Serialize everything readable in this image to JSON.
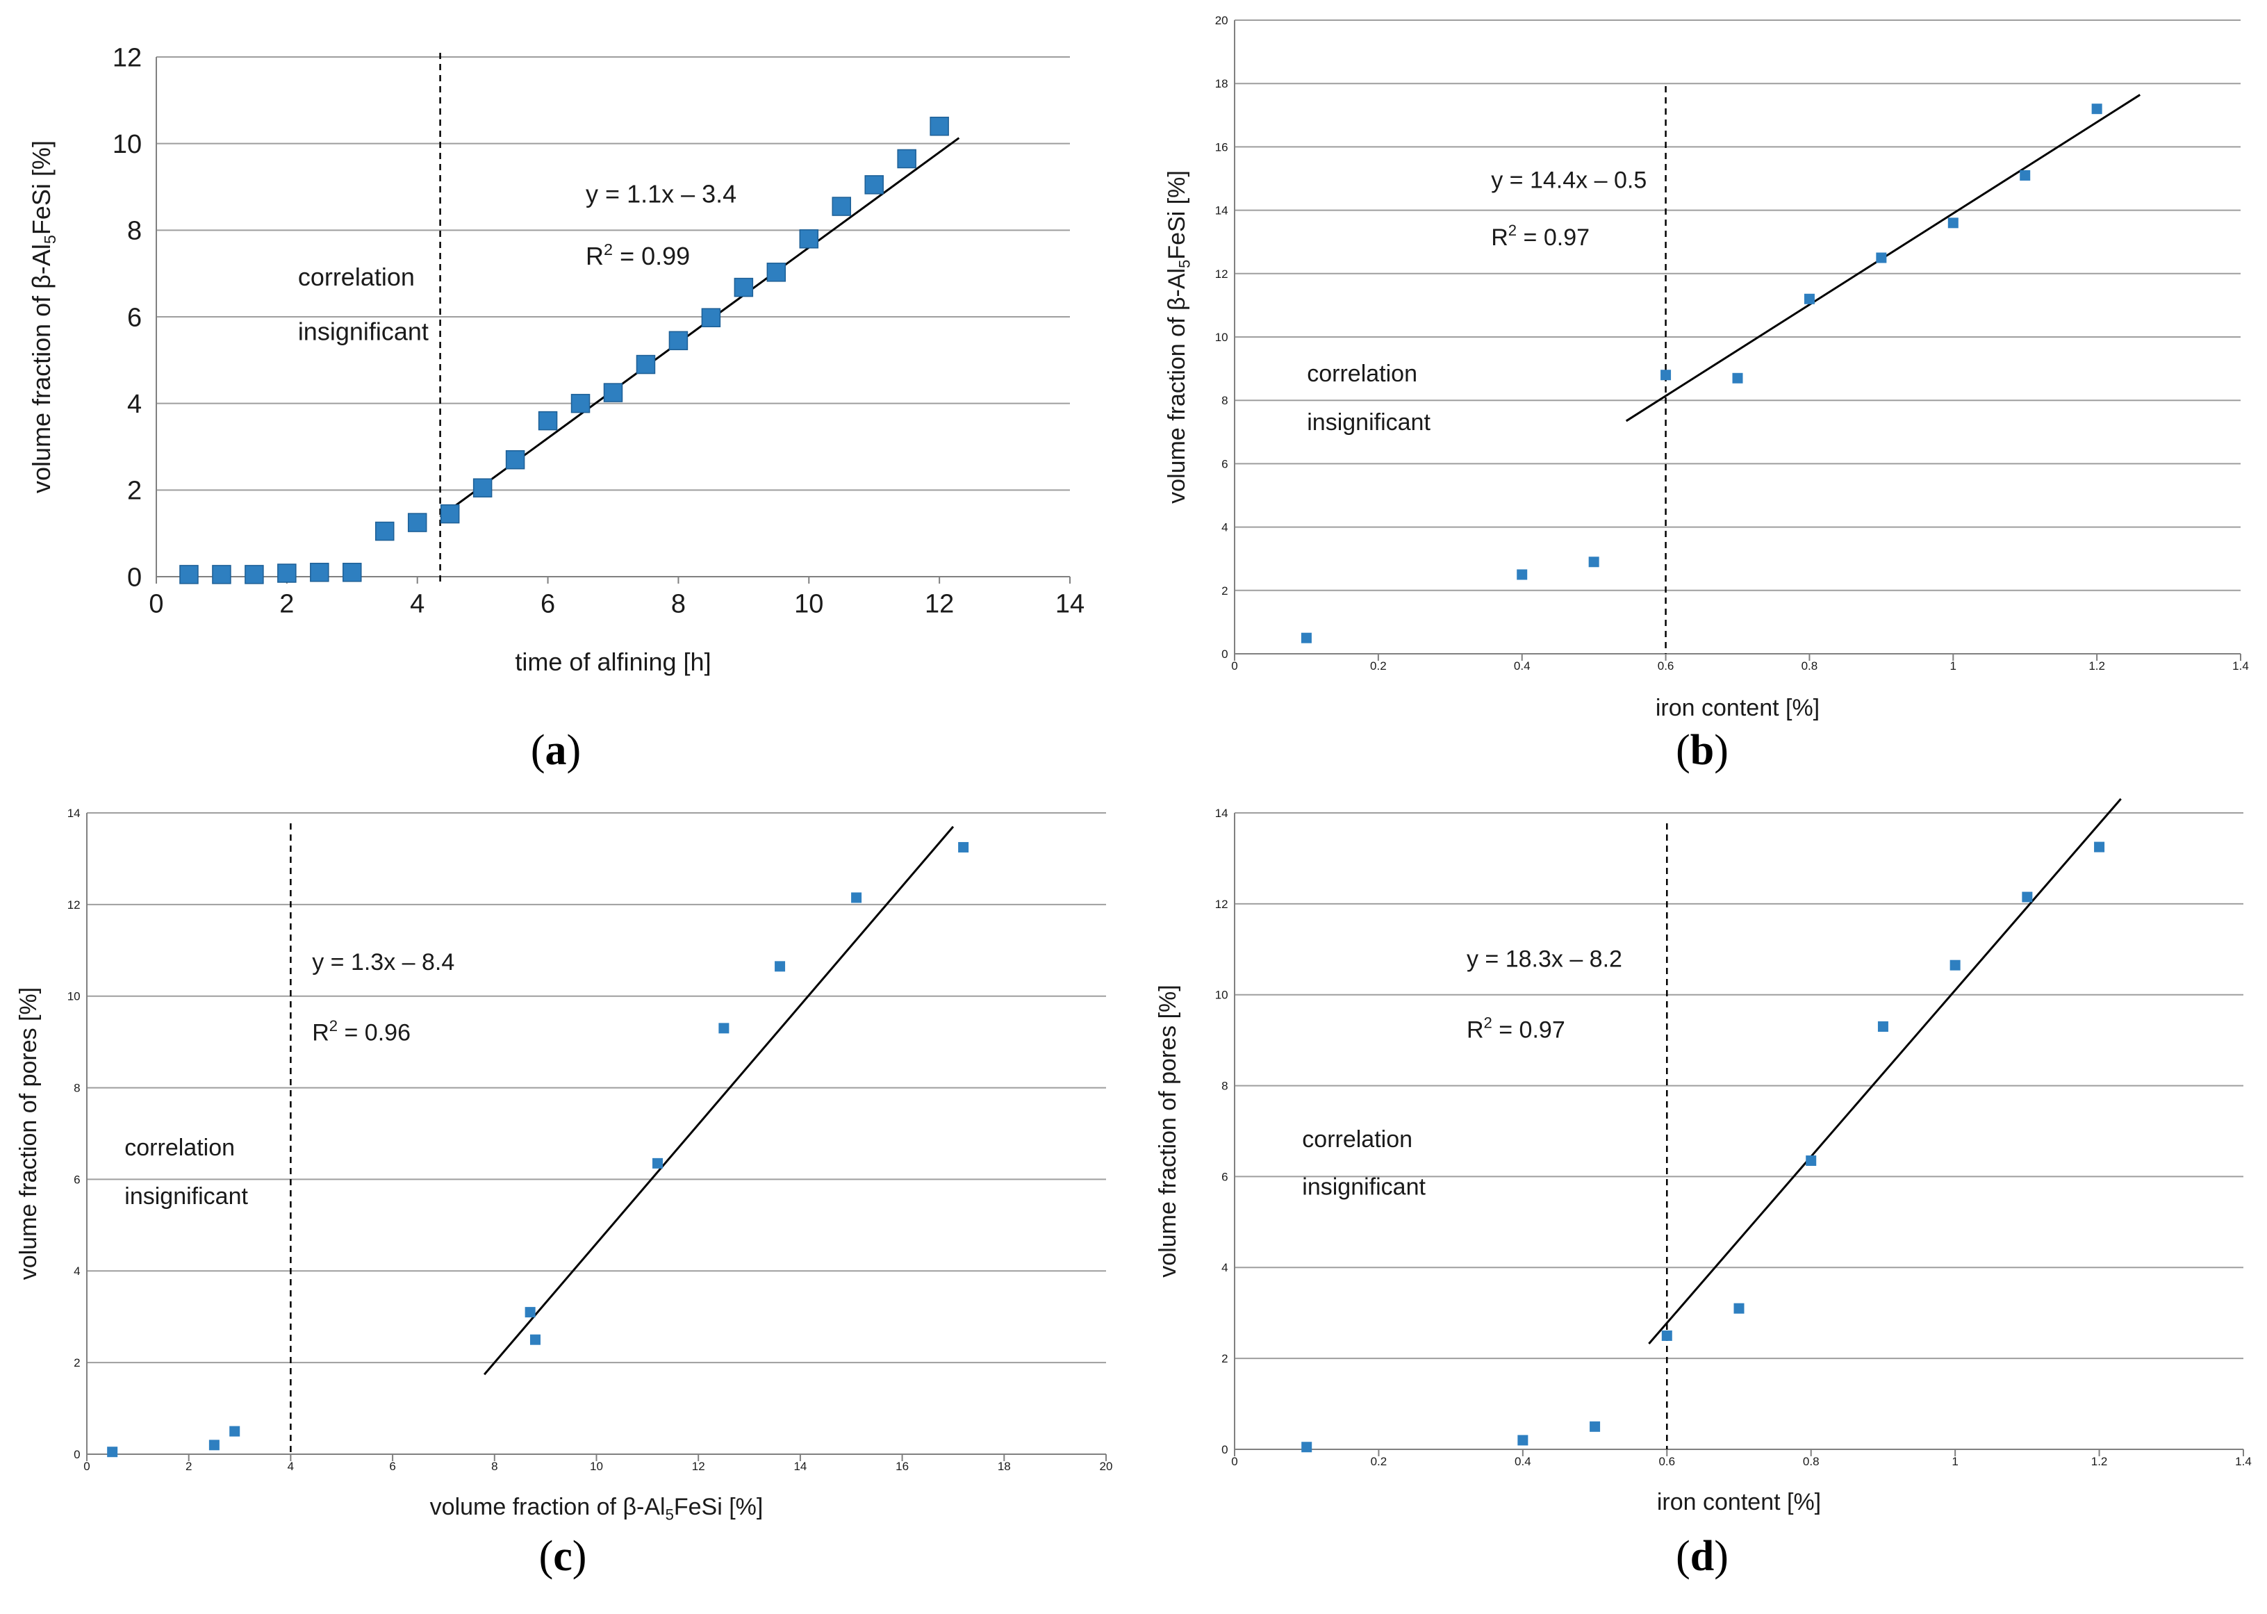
{
  "chart_data": [
    {
      "type": "scatter",
      "label_letter": "a",
      "xlabel": "time of alfining [h]",
      "ylabel": "volume fraction of β-Al5FeSi [%]",
      "xlim": [
        0,
        14
      ],
      "ylim": [
        0,
        12
      ],
      "xticks": [
        "0",
        "2",
        "4",
        "6",
        "8",
        "10",
        "12",
        "14"
      ],
      "yticks": [
        "0",
        "2",
        "4",
        "6",
        "8",
        "10",
        "12"
      ],
      "grid": true,
      "x": [
        0.5,
        1,
        1.5,
        2,
        2.5,
        3,
        3.5,
        4,
        4.5,
        5,
        5.5,
        6,
        6.5,
        7,
        7.5,
        8,
        8.5,
        9,
        9.5,
        10,
        10.5,
        11,
        11.5,
        12
      ],
      "y": [
        0.05,
        0.05,
        0.05,
        0.08,
        0.1,
        0.1,
        1.05,
        1.25,
        1.45,
        2.05,
        2.7,
        3.6,
        4.0,
        4.25,
        4.9,
        5.45,
        5.98,
        6.68,
        7.03,
        7.8,
        8.55,
        9.05,
        9.65,
        10.4
      ],
      "fit": {
        "x_from": 4.35,
        "x_to": 12.3,
        "slope": 1.1,
        "intercept": -3.4
      },
      "threshold_x": 4.35,
      "equation": "y = 1.1x – 3.4",
      "r2_prefix": "R",
      "r2_sup": "2",
      "r2_suffix": " = 0.99",
      "note_line1": "correlation",
      "note_line2": "insignificant"
    },
    {
      "type": "scatter",
      "label_letter": "b",
      "xlabel": "iron content [%]",
      "ylabel": "volume fraction of β-Al5FeSi [%]",
      "xlim": [
        0,
        1.4
      ],
      "ylim": [
        0,
        20
      ],
      "xticks": [
        "0",
        "0.2",
        "0.4",
        "0.6",
        "0.8",
        "1",
        "1.2",
        "1.4"
      ],
      "yticks": [
        "0",
        "2",
        "4",
        "6",
        "8",
        "10",
        "12",
        "14",
        "16",
        "18",
        "20"
      ],
      "grid": true,
      "x": [
        0.1,
        0.4,
        0.5,
        0.6,
        0.7,
        0.8,
        0.9,
        1.0,
        1.1,
        1.2
      ],
      "y": [
        0.5,
        2.5,
        2.9,
        8.8,
        8.7,
        11.2,
        12.5,
        13.6,
        15.1,
        17.2
      ],
      "fit": {
        "x_from": 0.545,
        "x_to": 1.26,
        "slope": 14.4,
        "intercept": -0.5
      },
      "threshold_x": 0.6,
      "equation": "y = 14.4x – 0.5",
      "r2_prefix": "R",
      "r2_sup": "2",
      "r2_suffix": " = 0.97",
      "note_line1": "correlation",
      "note_line2": "insignificant"
    },
    {
      "type": "scatter",
      "label_letter": "c",
      "xlabel": "volume fraction of β-Al5FeSi [%]",
      "ylabel": "volume fraction of pores [%]",
      "xlim": [
        0,
        20
      ],
      "ylim": [
        0,
        14
      ],
      "xticks": [
        "0",
        "2",
        "4",
        "6",
        "8",
        "10",
        "12",
        "14",
        "16",
        "18",
        "20"
      ],
      "yticks": [
        "0",
        "2",
        "4",
        "6",
        "8",
        "10",
        "12",
        "14"
      ],
      "grid": true,
      "x": [
        0.5,
        2.5,
        2.9,
        8.7,
        8.8,
        11.2,
        12.5,
        13.6,
        15.1,
        17.2
      ],
      "y": [
        0.05,
        0.2,
        0.5,
        3.1,
        2.5,
        6.35,
        9.3,
        10.65,
        12.15,
        13.25
      ],
      "fit": {
        "x_from": 7.8,
        "x_to": 17.0,
        "slope": 1.3,
        "intercept": -8.4
      },
      "threshold_x": 4.0,
      "equation": "y = 1.3x – 8.4",
      "r2_prefix": "R",
      "r2_sup": "2",
      "r2_suffix": " = 0.96",
      "note_line1": "correlation",
      "note_line2": "insignificant"
    },
    {
      "type": "scatter",
      "label_letter": "d",
      "xlabel": "iron content [%]",
      "ylabel": "volume fraction of pores [%]",
      "xlim": [
        0,
        1.4
      ],
      "ylim": [
        0,
        14
      ],
      "xticks": [
        "0",
        "0.2",
        "0.4",
        "0.6",
        "0.8",
        "1",
        "1.2",
        "1.4"
      ],
      "yticks": [
        "0",
        "2",
        "4",
        "6",
        "8",
        "10",
        "12",
        "14"
      ],
      "grid": true,
      "x": [
        0.1,
        0.4,
        0.5,
        0.6,
        0.7,
        0.8,
        0.9,
        1.0,
        1.1,
        1.2
      ],
      "y": [
        0.05,
        0.2,
        0.5,
        2.5,
        3.1,
        6.35,
        9.3,
        10.65,
        12.15,
        13.25
      ],
      "fit": {
        "x_from": 0.575,
        "x_to": 1.23,
        "slope": 18.3,
        "intercept": -8.2
      },
      "threshold_x": 0.6,
      "equation": "y = 18.3x – 8.2",
      "r2_prefix": "R",
      "r2_sup": "2",
      "r2_suffix": " = 0.97",
      "note_line1": "correlation",
      "note_line2": "insignificant"
    }
  ],
  "colors": {
    "marker": "#2e7fc0",
    "grid": "#9e9e9e",
    "axis": "#808080",
    "line": "#000000"
  }
}
